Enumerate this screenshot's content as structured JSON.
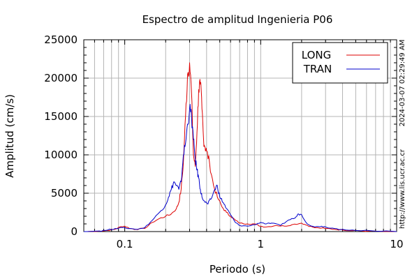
{
  "chart_data": {
    "type": "line",
    "title": "Espectro de amplitud Ingenieria P06",
    "xlabel": "Periodo (s)",
    "ylabel": "Amplitud (cm/s)",
    "x_scale": "log",
    "xlim": [
      0.05,
      10
    ],
    "ylim": [
      0,
      25000
    ],
    "grid": true,
    "legend_position": "top-right",
    "x_ticks": [
      {
        "value": 0.1,
        "label": "0.1"
      },
      {
        "value": 1,
        "label": "1"
      },
      {
        "value": 10,
        "label": "10"
      }
    ],
    "y_ticks": [
      {
        "value": 0,
        "label": "0"
      },
      {
        "value": 5000,
        "label": "5000"
      },
      {
        "value": 10000,
        "label": "10000"
      },
      {
        "value": 15000,
        "label": "15000"
      },
      {
        "value": 20000,
        "label": "20000"
      },
      {
        "value": 25000,
        "label": "25000"
      }
    ],
    "side_texts": {
      "timestamp": "2024-03-07 02:29:49 AM",
      "url": "http://www.lis.ucr.ac.cr"
    },
    "series": [
      {
        "name": "LONG",
        "color": "#dd0000",
        "points": [
          [
            0.05,
            0
          ],
          [
            0.065,
            50
          ],
          [
            0.075,
            150
          ],
          [
            0.085,
            300
          ],
          [
            0.092,
            600
          ],
          [
            0.1,
            700
          ],
          [
            0.11,
            400
          ],
          [
            0.12,
            300
          ],
          [
            0.14,
            400
          ],
          [
            0.16,
            1200
          ],
          [
            0.18,
            1700
          ],
          [
            0.2,
            2000
          ],
          [
            0.22,
            2300
          ],
          [
            0.24,
            3000
          ],
          [
            0.25,
            3800
          ],
          [
            0.26,
            5500
          ],
          [
            0.27,
            9000
          ],
          [
            0.28,
            15000
          ],
          [
            0.29,
            20500
          ],
          [
            0.3,
            22000
          ],
          [
            0.31,
            18000
          ],
          [
            0.32,
            10000
          ],
          [
            0.33,
            8500
          ],
          [
            0.34,
            13000
          ],
          [
            0.35,
            18500
          ],
          [
            0.36,
            19200
          ],
          [
            0.37,
            16000
          ],
          [
            0.38,
            12000
          ],
          [
            0.39,
            11000
          ],
          [
            0.4,
            10500
          ],
          [
            0.42,
            9000
          ],
          [
            0.45,
            6000
          ],
          [
            0.48,
            4500
          ],
          [
            0.52,
            3200
          ],
          [
            0.56,
            2500
          ],
          [
            0.6,
            2000
          ],
          [
            0.65,
            1500
          ],
          [
            0.7,
            1100
          ],
          [
            0.8,
            1000
          ],
          [
            0.9,
            1000
          ],
          [
            1.0,
            700
          ],
          [
            1.1,
            600
          ],
          [
            1.3,
            800
          ],
          [
            1.5,
            700
          ],
          [
            1.7,
            900
          ],
          [
            2.0,
            1100
          ],
          [
            2.2,
            800
          ],
          [
            2.5,
            500
          ],
          [
            3.0,
            400
          ],
          [
            3.5,
            300
          ],
          [
            4.0,
            200
          ],
          [
            5.0,
            150
          ],
          [
            7.0,
            50
          ],
          [
            10,
            0
          ]
        ]
      },
      {
        "name": "TRAN",
        "color": "#0000cc",
        "points": [
          [
            0.05,
            0
          ],
          [
            0.065,
            80
          ],
          [
            0.075,
            200
          ],
          [
            0.085,
            400
          ],
          [
            0.1,
            500
          ],
          [
            0.12,
            300
          ],
          [
            0.14,
            500
          ],
          [
            0.16,
            1500
          ],
          [
            0.18,
            2500
          ],
          [
            0.2,
            3500
          ],
          [
            0.21,
            4500
          ],
          [
            0.22,
            5500
          ],
          [
            0.23,
            6500
          ],
          [
            0.24,
            6000
          ],
          [
            0.25,
            5500
          ],
          [
            0.26,
            6500
          ],
          [
            0.27,
            10000
          ],
          [
            0.28,
            11500
          ],
          [
            0.29,
            14000
          ],
          [
            0.3,
            16000
          ],
          [
            0.31,
            15000
          ],
          [
            0.32,
            12000
          ],
          [
            0.33,
            9500
          ],
          [
            0.34,
            8000
          ],
          [
            0.35,
            7000
          ],
          [
            0.36,
            5500
          ],
          [
            0.37,
            4500
          ],
          [
            0.39,
            3800
          ],
          [
            0.41,
            3600
          ],
          [
            0.43,
            4200
          ],
          [
            0.46,
            5500
          ],
          [
            0.48,
            6000
          ],
          [
            0.5,
            4500
          ],
          [
            0.53,
            3800
          ],
          [
            0.56,
            3000
          ],
          [
            0.6,
            2200
          ],
          [
            0.65,
            1200
          ],
          [
            0.7,
            800
          ],
          [
            0.8,
            700
          ],
          [
            0.9,
            900
          ],
          [
            1.0,
            1200
          ],
          [
            1.1,
            1000
          ],
          [
            1.2,
            1100
          ],
          [
            1.4,
            800
          ],
          [
            1.6,
            1500
          ],
          [
            1.8,
            1800
          ],
          [
            1.9,
            2300
          ],
          [
            2.0,
            2200
          ],
          [
            2.2,
            1000
          ],
          [
            2.5,
            600
          ],
          [
            2.8,
            700
          ],
          [
            3.0,
            600
          ],
          [
            3.5,
            400
          ],
          [
            4.0,
            300
          ],
          [
            5.0,
            150
          ],
          [
            7.0,
            50
          ],
          [
            10,
            0
          ]
        ]
      }
    ]
  }
}
